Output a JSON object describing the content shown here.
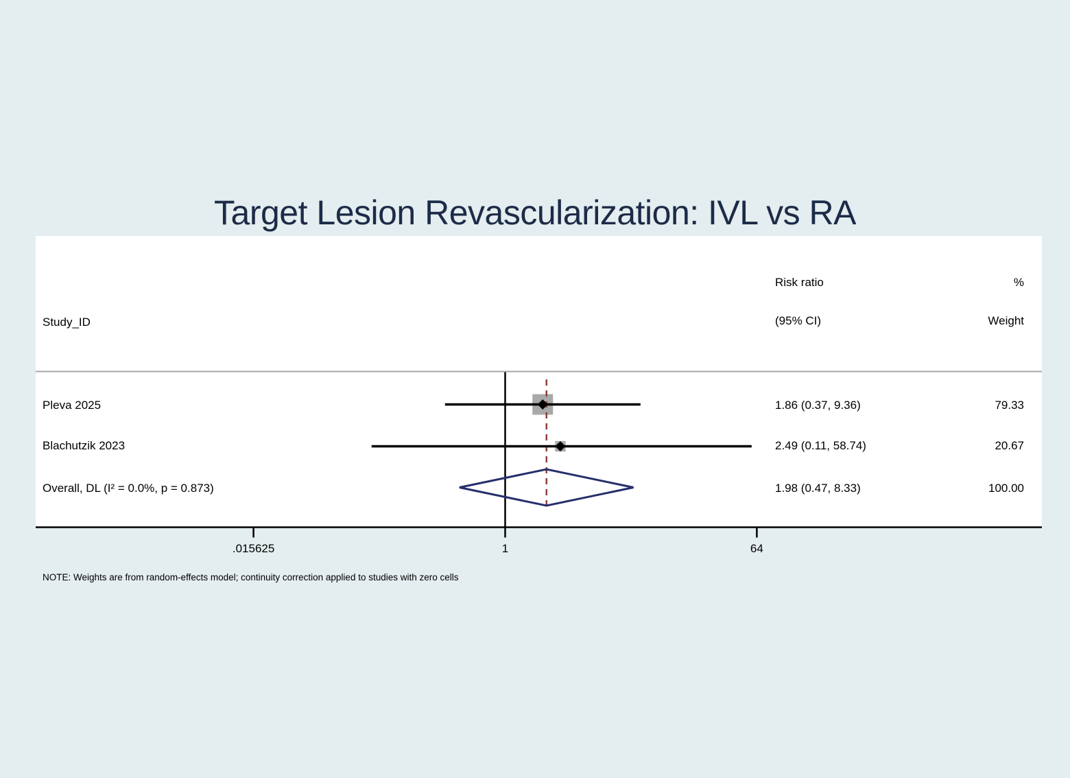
{
  "title": "Target Lesion Revascularization: IVL vs RA",
  "header": {
    "study_col": "Study_ID",
    "effect_line1": "Risk ratio",
    "effect_line2": "(95% CI)",
    "weight_line1": "%",
    "weight_line2": "Weight"
  },
  "chart_data": {
    "type": "forest",
    "title": "Target Lesion Revascularization: IVL vs RA",
    "effect_measure": "Risk ratio",
    "x_axis": {
      "scale": "log2",
      "ticks": [
        ".015625",
        "1",
        "64"
      ],
      "tick_values": [
        0.015625,
        1,
        64
      ],
      "null_value": 1
    },
    "studies": [
      {
        "label": "Pleva 2025",
        "rr": 1.86,
        "ci_low": 0.37,
        "ci_high": 9.36,
        "estimate_text": "1.86 (0.37, 9.36)",
        "weight": 79.33,
        "weight_text": "79.33"
      },
      {
        "label": "Blachutzik 2023",
        "rr": 2.49,
        "ci_low": 0.11,
        "ci_high": 58.74,
        "estimate_text": "2.49 (0.11, 58.74)",
        "weight": 20.67,
        "weight_text": "20.67"
      }
    ],
    "overall": {
      "label": "Overall, DL (I² = 0.0%, p = 0.873)",
      "rr": 1.98,
      "ci_low": 0.47,
      "ci_high": 8.33,
      "estimate_text": "1.98 (0.47, 8.33)",
      "weight": 100.0,
      "weight_text": "100.00",
      "model": "random-effects (DL)",
      "heterogeneity_I2": "0.0%",
      "heterogeneity_p": "0.873"
    },
    "legend_position": "none",
    "grid": false
  },
  "note": "NOTE: Weights are from random-effects model; continuity correction applied to studies with zero cells",
  "colors": {
    "background": "#e4edef",
    "panel": "#ffffff",
    "title_text": "#1c2b47",
    "ci_line": "#000000",
    "null_line": "#000000",
    "overall_dashed_line": "#8f3f3f",
    "weight_box": "#a9a9a9",
    "point_marker": "#000000",
    "diamond_outline": "#262f6b",
    "divider_line": "#a6a6a6"
  }
}
